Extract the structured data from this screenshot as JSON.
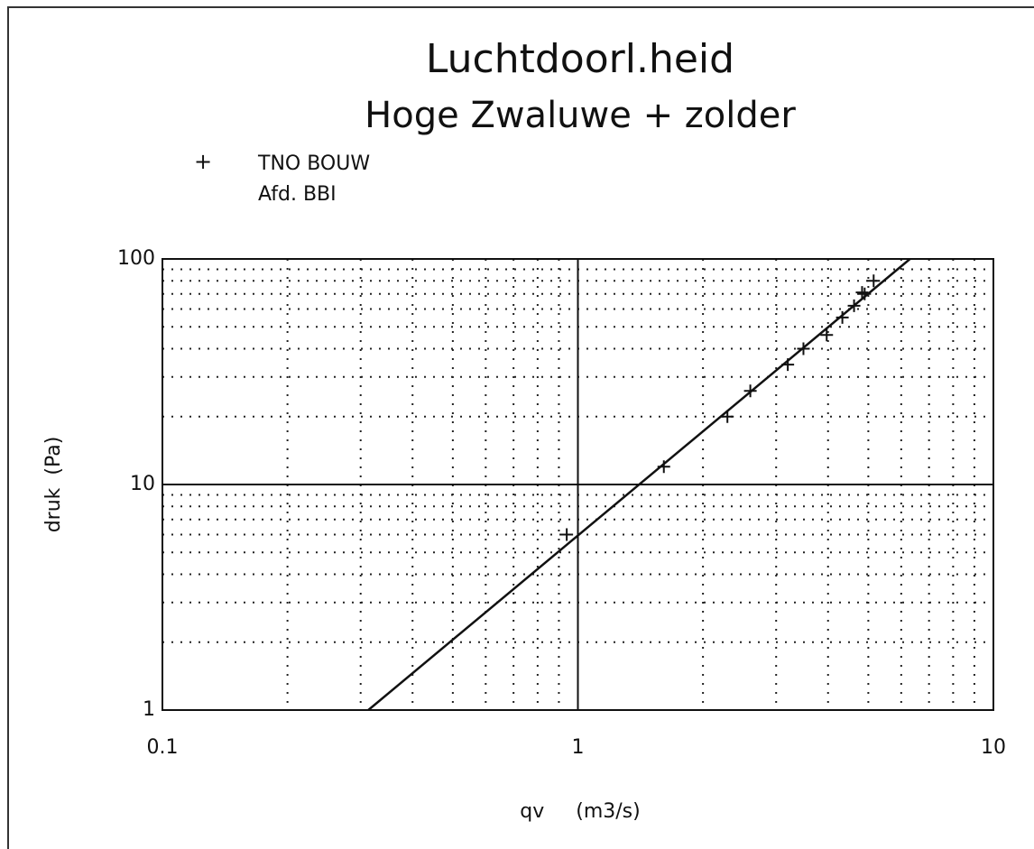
{
  "chart_data": {
    "type": "scatter",
    "title": "Luchtdoorl.heid",
    "subtitle": "Hoge Zwaluwe + zolder",
    "legend_marker": "+",
    "legend_lines": [
      "TNO BOUW",
      "Afd. BBI"
    ],
    "xlabel": "qv     (m3/s)",
    "ylabel": "druk  (Pa)",
    "log_x": true,
    "log_y": true,
    "xlim": [
      0.1,
      10
    ],
    "ylim": [
      1,
      100
    ],
    "xticks": [
      0.1,
      1,
      10
    ],
    "yticks": [
      1,
      10,
      100
    ],
    "xminor": [
      0.2,
      0.3,
      0.4,
      0.5,
      0.6,
      0.7,
      0.8,
      0.9,
      2,
      3,
      4,
      5,
      6,
      7,
      8,
      9
    ],
    "yminor": [
      2,
      3,
      4,
      5,
      6,
      7,
      8,
      9,
      20,
      30,
      40,
      50,
      60,
      70,
      80,
      90
    ],
    "grid": true,
    "color": "#111111",
    "series": [
      {
        "name": "TNO BOUW",
        "color": "#111111",
        "x": [
          0.94,
          1.61,
          2.29,
          2.6,
          3.2,
          3.49,
          3.97,
          4.33,
          4.62,
          4.83,
          4.9,
          5.15
        ],
        "values": [
          6,
          12,
          20,
          26,
          34,
          40,
          46,
          55,
          62,
          71,
          70,
          80
        ]
      }
    ],
    "fit": {
      "x": [
        0.313,
        6.3
      ],
      "values": [
        1,
        100
      ]
    }
  }
}
